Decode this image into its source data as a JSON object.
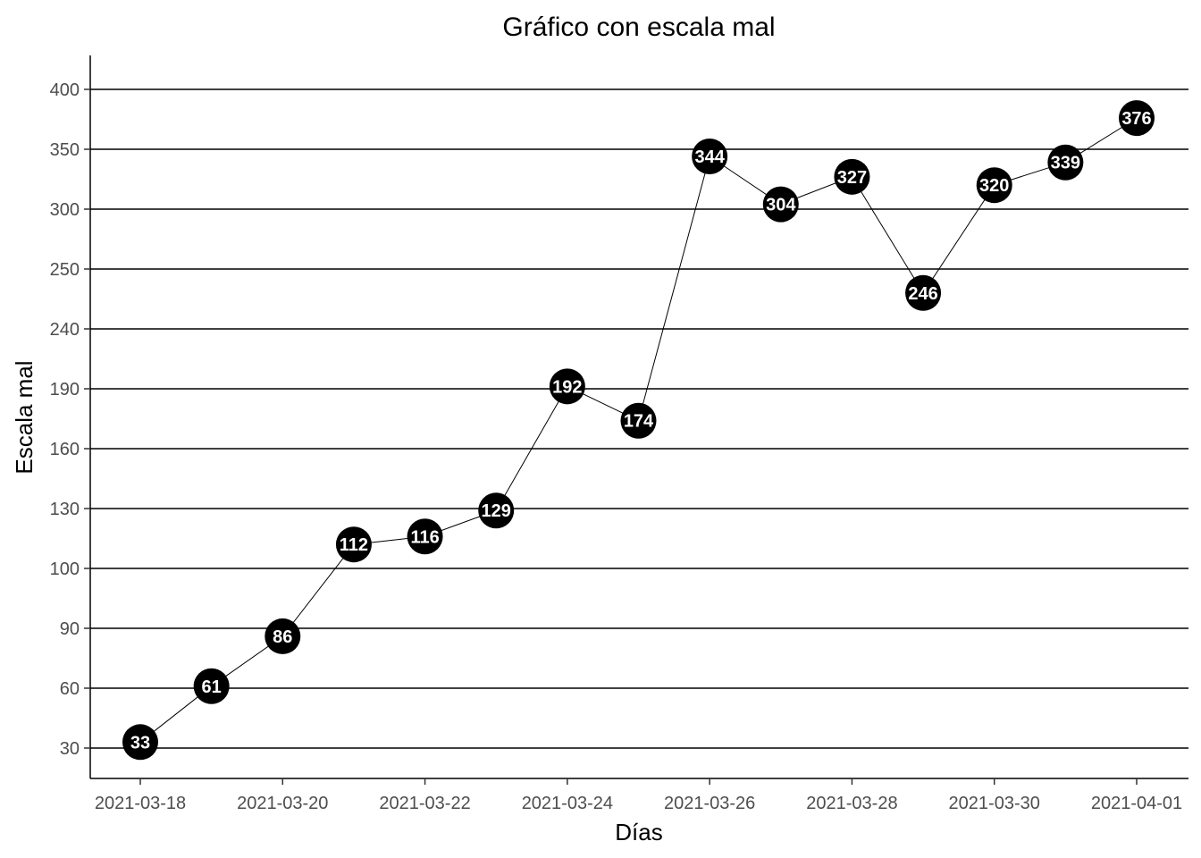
{
  "chart_data": {
    "type": "line",
    "title": "Gráfico con escala mal",
    "xlabel": "Días",
    "ylabel": "Escala mal",
    "x": [
      "2021-03-18",
      "2021-03-19",
      "2021-03-20",
      "2021-03-21",
      "2021-03-22",
      "2021-03-23",
      "2021-03-24",
      "2021-03-25",
      "2021-03-26",
      "2021-03-27",
      "2021-03-28",
      "2021-03-29",
      "2021-03-30",
      "2021-03-31",
      "2021-04-01"
    ],
    "values": [
      33,
      61,
      86,
      112,
      116,
      129,
      192,
      174,
      344,
      304,
      327,
      246,
      320,
      339,
      376
    ],
    "y_ticks": [
      "30",
      "60",
      "90",
      "100",
      "130",
      "160",
      "190",
      "240",
      "250",
      "300",
      "350",
      "400"
    ],
    "x_ticks": [
      "2021-03-18",
      "2021-03-20",
      "2021-03-22",
      "2021-03-24",
      "2021-03-26",
      "2021-03-28",
      "2021-03-30",
      "2021-04-01"
    ],
    "grid": "horizontal-major",
    "point_color": "#000000",
    "point_label_color": "#ffffff",
    "line_color": "#000000"
  }
}
